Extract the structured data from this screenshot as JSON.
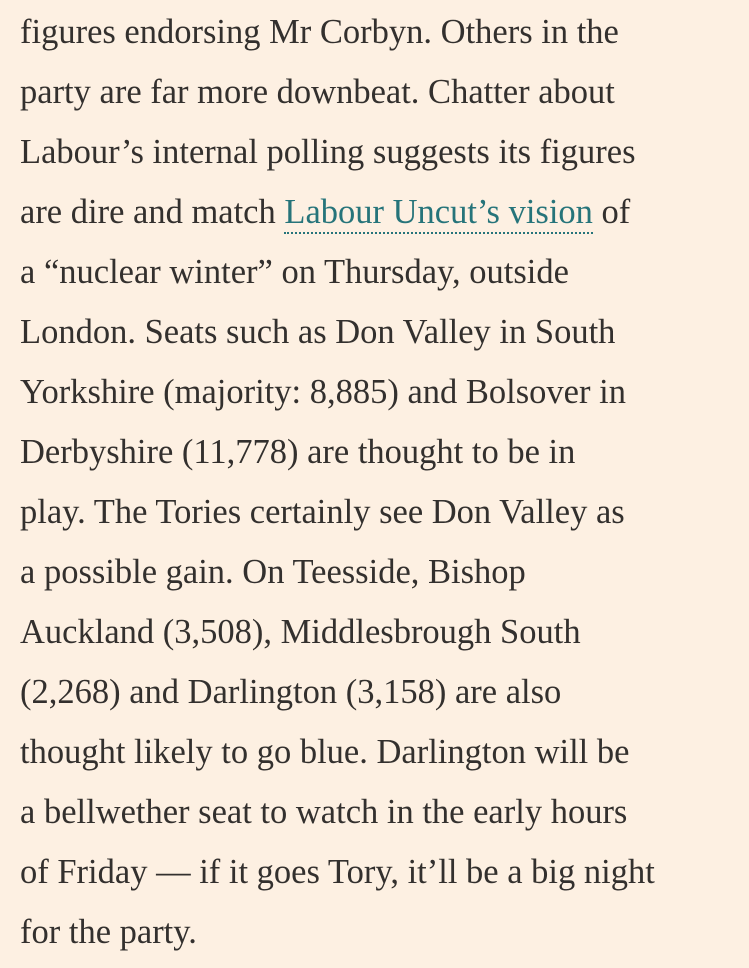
{
  "article": {
    "lines": [
      "figures endorsing Mr Corbyn. Others in the",
      "party are far more downbeat. Chatter about",
      "Labour’s internal polling suggests its figures",
      {
        "before": "are dire and match ",
        "link": "Labour Uncut’s vision",
        "after": " of"
      },
      "a “nuclear winter” on Thursday, outside",
      "London. Seats such as Don Valley in South",
      "Yorkshire (majority: 8,885) and Bolsover in",
      "Derbyshire (11,778) are thought to be in",
      "play. The Tories certainly see Don Valley as",
      "a possible gain. On Teesside, Bishop",
      "Auckland (3,508), Middlesbrough South",
      "(2,268) and Darlington (3,158) are also",
      "thought likely to go blue. Darlington will be",
      "a bellwether seat to watch in the early hours",
      "of Friday — if it goes Tory, it’ll be a big night",
      "for the party."
    ]
  },
  "colors": {
    "background": "#fdf0e2",
    "text": "#33302e",
    "link": "#26747a"
  }
}
